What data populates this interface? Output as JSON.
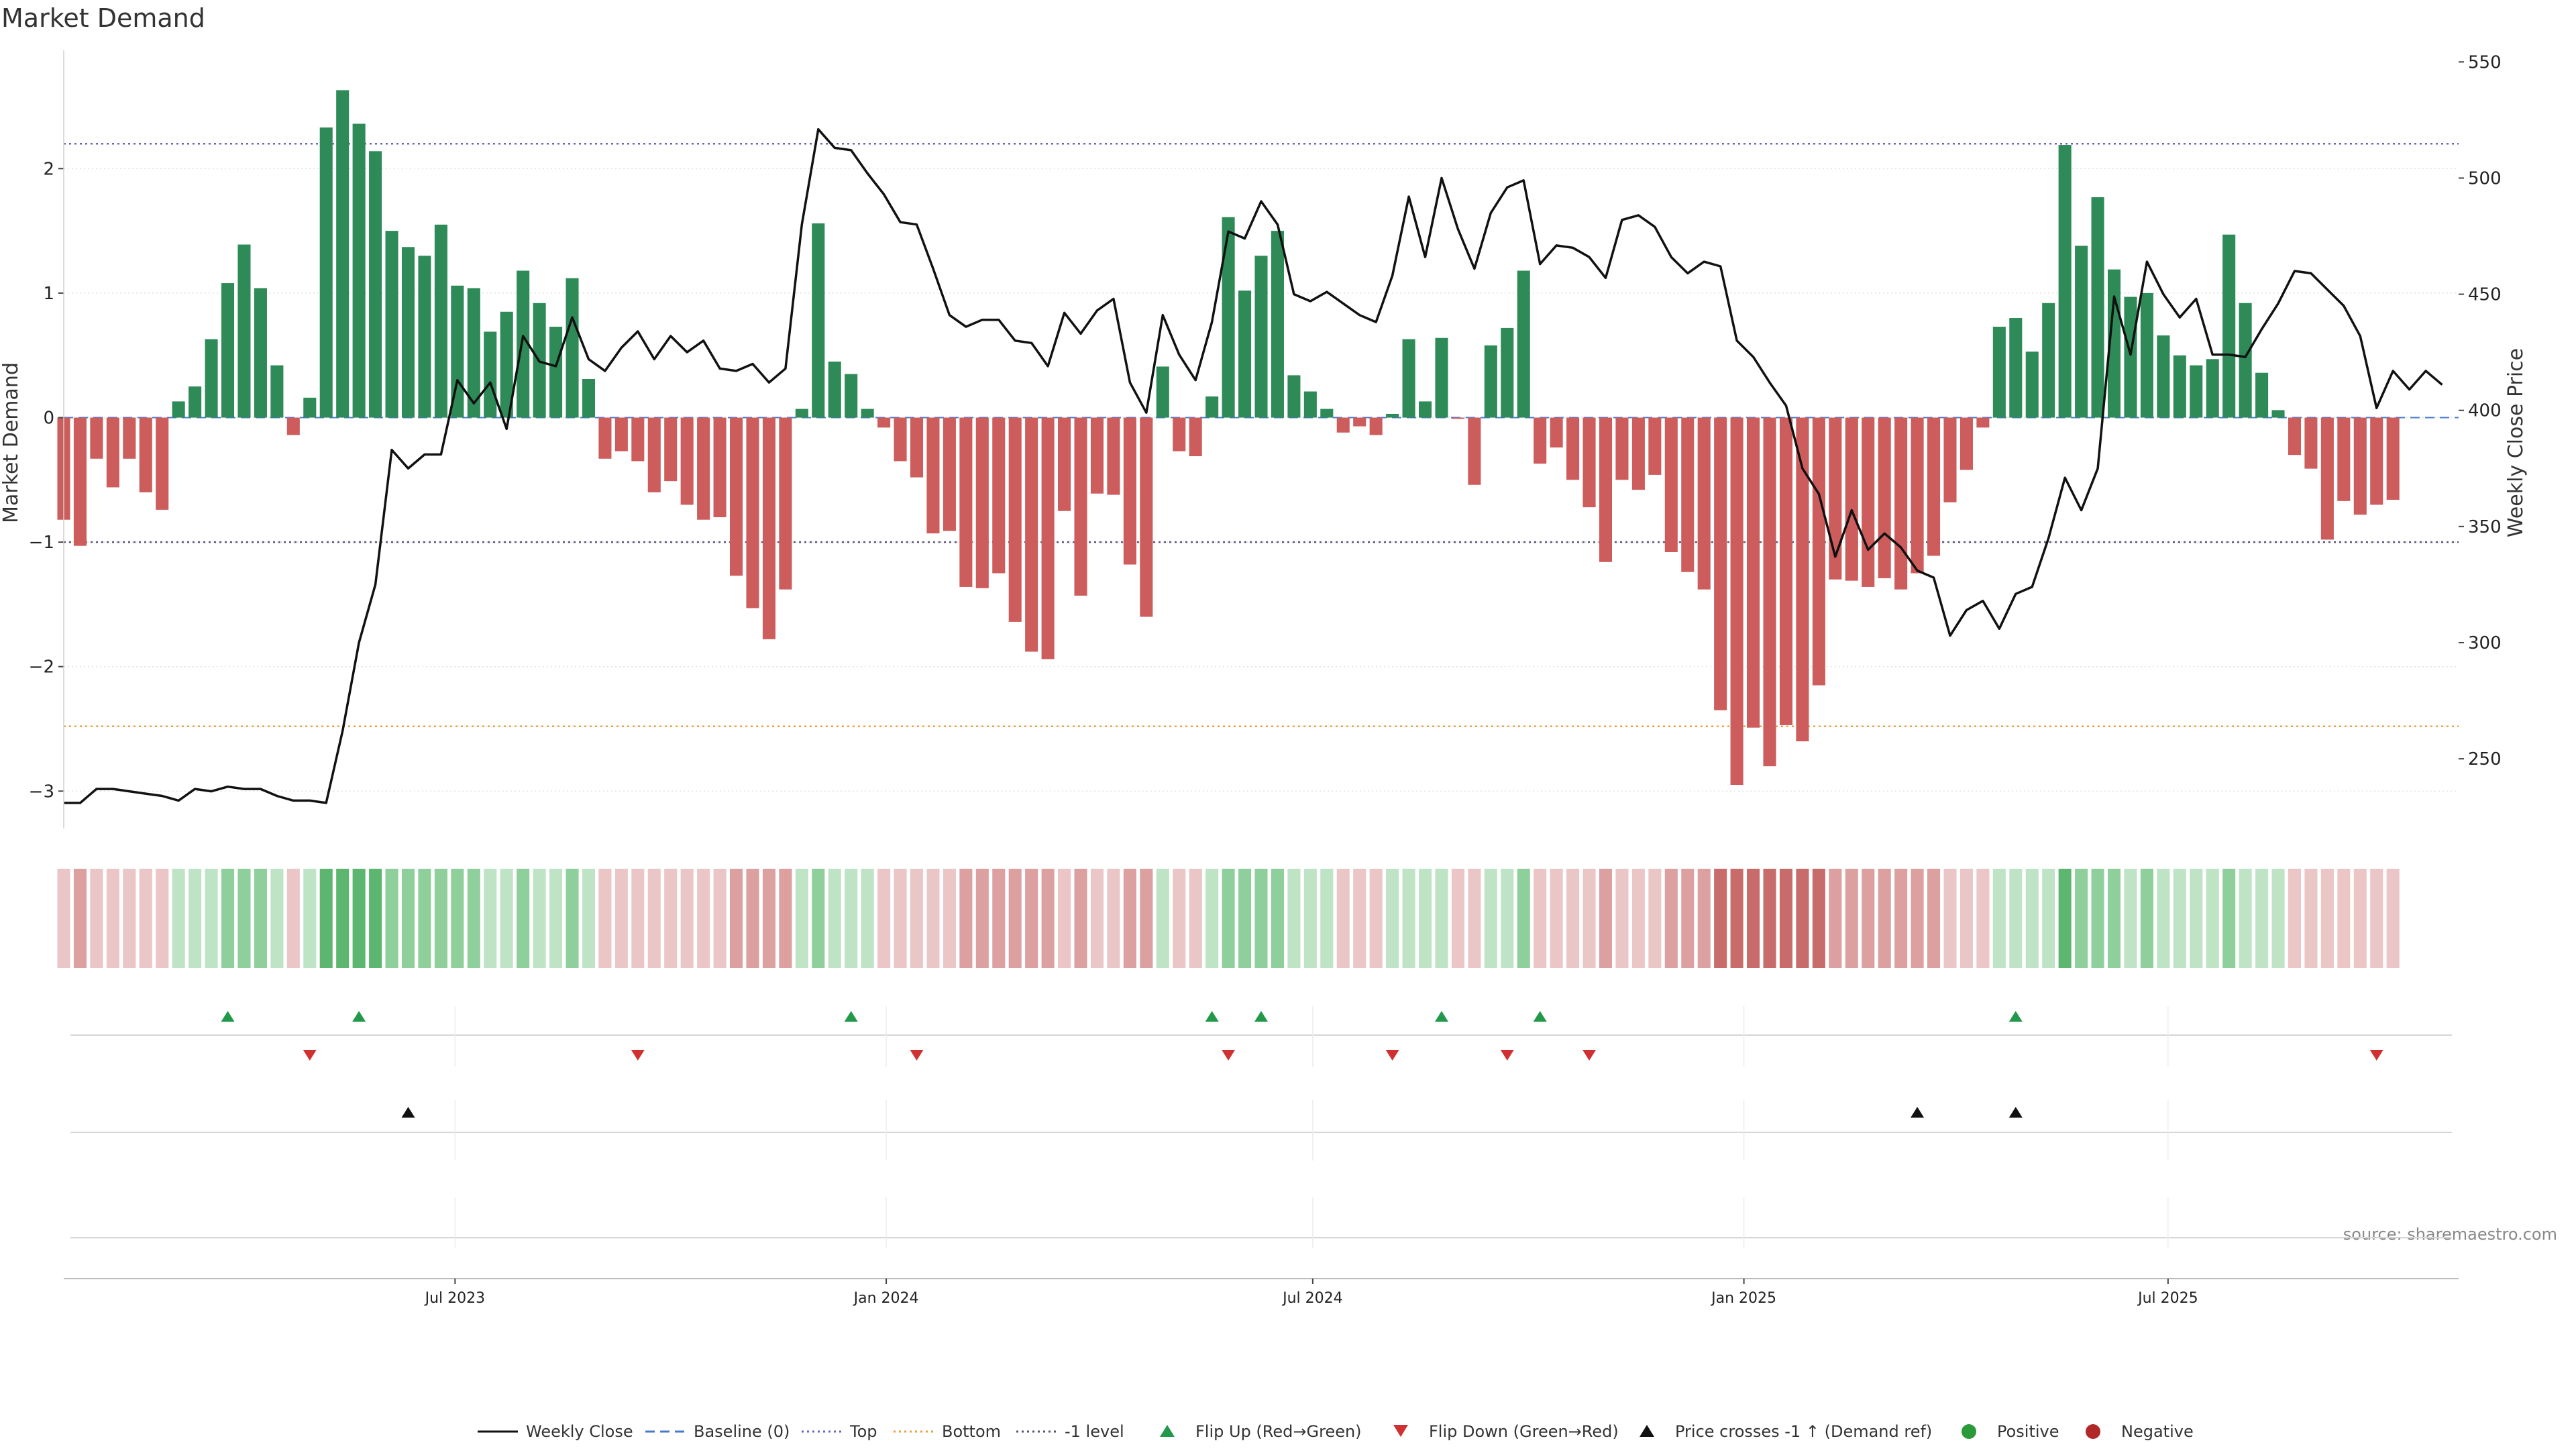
{
  "chart_data": {
    "type": "bar+line",
    "title": "Market Demand",
    "ylabel": "Market Demand",
    "y2label": "Weekly Close Price",
    "ylim": [
      -3.3,
      2.95
    ],
    "y2lim": [
      220,
      555
    ],
    "yticks": [
      -3,
      -2,
      -1,
      0,
      1,
      2
    ],
    "yticklabels": [
      "−3",
      "−2",
      "−1",
      "0",
      "1",
      "2"
    ],
    "y2ticks": [
      250,
      300,
      350,
      400,
      450,
      500,
      550
    ],
    "y2ticklabels": [
      "250",
      "300",
      "350",
      "400",
      "450",
      "500",
      "550"
    ],
    "x_start": "2023-01-15",
    "x_end": "2025-11-02",
    "xtick_dates": [
      "2023-07-01",
      "2024-01-01",
      "2024-07-01",
      "2025-01-01",
      "2025-07-01"
    ],
    "xticklabels": [
      "Jul 2023",
      "Jan 2024",
      "Jul 2024",
      "Jan 2025",
      "Jul 2025"
    ],
    "first_week": "2023-01-15",
    "reference_lines": [
      {
        "name": "Top",
        "value": 2.2,
        "color": "#6666bb"
      },
      {
        "name": "Bottom",
        "value": -2.48,
        "color": "#e8a040"
      },
      {
        "name": "-1 level",
        "value": -1.0,
        "color": "#555577"
      }
    ],
    "demand": [
      -0.82,
      -1.03,
      -0.33,
      -0.56,
      -0.33,
      -0.6,
      -0.74,
      0.13,
      0.25,
      0.63,
      1.08,
      1.39,
      1.04,
      0.42,
      -0.14,
      0.16,
      2.33,
      2.63,
      2.36,
      2.14,
      1.5,
      1.37,
      1.3,
      1.55,
      1.06,
      1.04,
      0.69,
      0.85,
      1.18,
      0.92,
      0.73,
      1.12,
      0.31,
      -0.33,
      -0.27,
      -0.35,
      -0.6,
      -0.51,
      -0.7,
      -0.82,
      -0.8,
      -1.27,
      -1.53,
      -1.78,
      -1.38,
      0.07,
      1.56,
      0.45,
      0.35,
      0.07,
      -0.08,
      -0.35,
      -0.48,
      -0.93,
      -0.91,
      -1.36,
      -1.37,
      -1.25,
      -1.64,
      -1.88,
      -1.94,
      -0.75,
      -1.43,
      -0.61,
      -0.62,
      -1.18,
      -1.6,
      0.41,
      -0.27,
      -0.31,
      0.17,
      1.61,
      1.02,
      1.3,
      1.5,
      0.34,
      0.21,
      0.07,
      -0.12,
      -0.07,
      -0.14,
      0.03,
      0.63,
      0.13,
      0.64,
      -0.01,
      -0.54,
      0.58,
      0.72,
      1.18,
      -0.37,
      -0.24,
      -0.5,
      -0.72,
      -1.16,
      -0.5,
      -0.58,
      -0.46,
      -1.08,
      -1.24,
      -1.38,
      -2.35,
      -2.95,
      -2.49,
      -2.8,
      -2.47,
      -2.6,
      -2.15,
      -1.3,
      -1.31,
      -1.36,
      -1.29,
      -1.38,
      -1.25,
      -1.11,
      -0.68,
      -0.42,
      -0.08,
      0.73,
      0.8,
      0.53,
      0.92,
      2.19,
      1.38,
      1.77,
      1.19,
      0.97,
      1.0,
      0.66,
      0.5,
      0.42,
      0.47,
      1.47,
      0.92,
      0.36,
      0.06,
      -0.3,
      -0.41,
      -0.98,
      -0.67,
      -0.78,
      -0.7,
      -0.66
    ],
    "price": [
      231,
      231,
      237,
      237,
      236,
      235,
      234,
      232,
      237,
      236,
      238,
      237,
      237,
      234,
      232,
      232,
      231,
      262,
      300,
      325,
      383,
      375,
      381,
      381,
      413,
      403,
      412,
      392,
      432,
      421,
      419,
      440,
      422,
      417,
      427,
      434,
      422,
      432,
      425,
      430,
      418,
      417,
      420,
      412,
      418,
      480,
      521,
      513,
      512,
      502,
      493,
      481,
      480,
      461,
      441,
      436,
      439,
      439,
      430,
      429,
      419,
      442,
      433,
      443,
      448,
      412,
      399,
      441,
      424,
      413,
      438,
      477,
      474,
      490,
      480,
      450,
      447,
      451,
      446,
      441,
      438,
      458,
      492,
      466,
      500,
      478,
      461,
      485,
      496,
      499,
      463,
      471,
      470,
      466,
      457,
      482,
      484,
      479,
      466,
      459,
      464,
      462,
      430,
      423,
      412,
      402,
      375,
      364,
      337,
      357,
      340,
      347,
      341,
      331,
      328,
      303,
      314,
      318,
      306,
      321,
      324,
      345,
      371,
      357,
      375,
      449,
      424,
      464,
      450,
      440,
      448,
      424,
      424,
      423,
      435,
      446,
      460,
      459,
      452,
      445,
      432,
      401,
      417,
      409,
      417,
      411
    ],
    "tile_categories": [
      "light-red",
      "light-green",
      "mid-green",
      "dark-green",
      "light-red-mid",
      "mid-red",
      "dark-red"
    ],
    "flip_up_dates": [
      "2023-03-26",
      "2023-05-21",
      "2023-12-17",
      "2024-05-19",
      "2024-06-09",
      "2024-08-25",
      "2024-10-06",
      "2025-04-27"
    ],
    "flip_down_dates": [
      "2023-04-30",
      "2023-09-17",
      "2024-01-14",
      "2024-05-26",
      "2024-08-04",
      "2024-09-22",
      "2024-10-27",
      "2025-09-28"
    ],
    "price_cross_dates": [
      "2023-06-11",
      "2025-03-16",
      "2025-04-27"
    ],
    "source_text": "source: sharemaestro.com",
    "legend": [
      {
        "label": "Weekly Close",
        "kind": "line",
        "color": "#111111",
        "dash": ""
      },
      {
        "label": "Baseline (0)",
        "kind": "line",
        "color": "#4a7ad0",
        "dash": "14 8"
      },
      {
        "label": "Top",
        "kind": "line",
        "color": "#6666bb",
        "dash": "3 5"
      },
      {
        "label": "Bottom",
        "kind": "line",
        "color": "#e8a040",
        "dash": "3 5"
      },
      {
        "label": "-1 level",
        "kind": "line",
        "color": "#555577",
        "dash": "3 5"
      },
      {
        "label": "Flip Up (Red→Green)",
        "kind": "tri-up",
        "color": "#22994a"
      },
      {
        "label": "Flip Down (Green→Red)",
        "kind": "tri-down",
        "color": "#d03030"
      },
      {
        "label": "Price crosses -1 ↑ (Demand ref)",
        "kind": "tri-up",
        "color": "#111111"
      },
      {
        "label": "Positive",
        "kind": "dot",
        "color": "#2a9a3a"
      },
      {
        "label": "Negative",
        "kind": "dot",
        "color": "#b02828"
      }
    ],
    "colors": {
      "positive_bar": "#2e8b57",
      "negative_bar": "#cd5c5c",
      "price_line": "#111111",
      "grid": "#e2e2e2"
    }
  }
}
